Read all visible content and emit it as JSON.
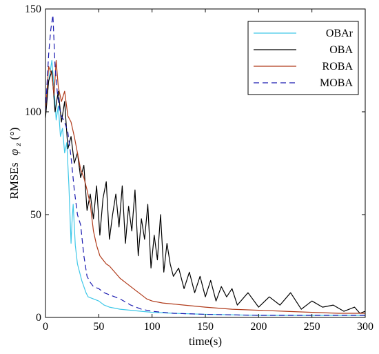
{
  "chart_data": {
    "type": "line",
    "xlabel": "time(s)",
    "ylabel_main": "RMSEs",
    "ylabel_symbol": "φ",
    "ylabel_sub": "z",
    "ylabel_unit": "(°)",
    "xlim": [
      0,
      300
    ],
    "ylim": [
      0,
      150
    ],
    "xticks": [
      0,
      50,
      100,
      150,
      200,
      250,
      300
    ],
    "yticks": [
      0,
      50,
      100,
      150
    ],
    "xtick_labels": [
      "0",
      "50",
      "100",
      "150",
      "200",
      "250",
      "300"
    ],
    "ytick_labels": [
      "0",
      "50",
      "100",
      "150"
    ],
    "grid": false,
    "legend_placement": "top-right",
    "series": [
      {
        "name": "OBAr",
        "color": "#3fc8e8",
        "dash": "solid",
        "x": [
          0,
          3,
          6,
          8,
          10,
          12,
          14,
          16,
          18,
          20,
          22,
          24,
          25,
          26,
          28,
          30,
          32,
          34,
          36,
          38,
          40,
          45,
          50,
          55,
          60,
          70,
          80,
          90,
          100,
          120,
          150,
          200,
          250,
          300
        ],
        "y": [
          98,
          115,
          125,
          112,
          96,
          103,
          88,
          92,
          80,
          85,
          64,
          36,
          48,
          55,
          35,
          26,
          22,
          18,
          15,
          12,
          10,
          9,
          8,
          6,
          5,
          4,
          3.5,
          3,
          2.5,
          2,
          1.5,
          1,
          1,
          1
        ]
      },
      {
        "name": "OBA",
        "color": "#000000",
        "dash": "solid",
        "x": [
          0,
          3,
          6,
          9,
          12,
          15,
          18,
          21,
          24,
          27,
          30,
          33,
          36,
          39,
          42,
          45,
          48,
          51,
          54,
          57,
          60,
          63,
          66,
          69,
          72,
          75,
          78,
          81,
          84,
          87,
          90,
          93,
          96,
          99,
          102,
          105,
          108,
          111,
          114,
          117,
          120,
          125,
          130,
          135,
          140,
          145,
          150,
          155,
          160,
          165,
          170,
          175,
          180,
          190,
          200,
          210,
          220,
          230,
          240,
          250,
          260,
          270,
          280,
          290,
          295,
          300
        ],
        "y": [
          97,
          115,
          120,
          100,
          110,
          95,
          105,
          82,
          88,
          75,
          80,
          68,
          74,
          52,
          60,
          48,
          64,
          40,
          58,
          66,
          38,
          50,
          60,
          44,
          64,
          36,
          54,
          42,
          62,
          30,
          48,
          38,
          55,
          24,
          40,
          28,
          50,
          22,
          36,
          26,
          20,
          24,
          14,
          22,
          12,
          20,
          10,
          18,
          8,
          15,
          10,
          14,
          6,
          12,
          5,
          10,
          6,
          12,
          4,
          8,
          5,
          6,
          3,
          5,
          2,
          3
        ]
      },
      {
        "name": "ROBA",
        "color": "#b03a1a",
        "dash": "solid",
        "x": [
          0,
          3,
          6,
          8,
          10,
          12,
          15,
          18,
          21,
          24,
          27,
          30,
          33,
          36,
          39,
          42,
          45,
          48,
          51,
          54,
          57,
          60,
          65,
          70,
          75,
          80,
          85,
          90,
          95,
          100,
          110,
          120,
          130,
          140,
          150,
          175,
          200,
          225,
          250,
          275,
          300
        ],
        "y": [
          100,
          122,
          118,
          108,
          125,
          112,
          105,
          110,
          98,
          95,
          88,
          80,
          72,
          68,
          62,
          55,
          42,
          35,
          30,
          28,
          26,
          25,
          22,
          19,
          17,
          15,
          13,
          11,
          9,
          8,
          7,
          6.5,
          6,
          5.5,
          5,
          4,
          3.5,
          3,
          2.5,
          2,
          2
        ]
      },
      {
        "name": "MOBA",
        "color": "#1a1ab0",
        "dash": "dashed",
        "x": [
          0,
          3,
          5,
          7,
          9,
          11,
          13,
          15,
          18,
          21,
          24,
          27,
          30,
          33,
          36,
          39,
          42,
          45,
          50,
          55,
          60,
          70,
          80,
          90,
          100,
          120,
          150,
          200,
          250,
          300
        ],
        "y": [
          100,
          128,
          140,
          147,
          122,
          110,
          102,
          98,
          95,
          90,
          78,
          62,
          50,
          45,
          30,
          20,
          17,
          15,
          14,
          12,
          11,
          9,
          6,
          4,
          3,
          2,
          1.5,
          1,
          1,
          1
        ]
      }
    ]
  }
}
